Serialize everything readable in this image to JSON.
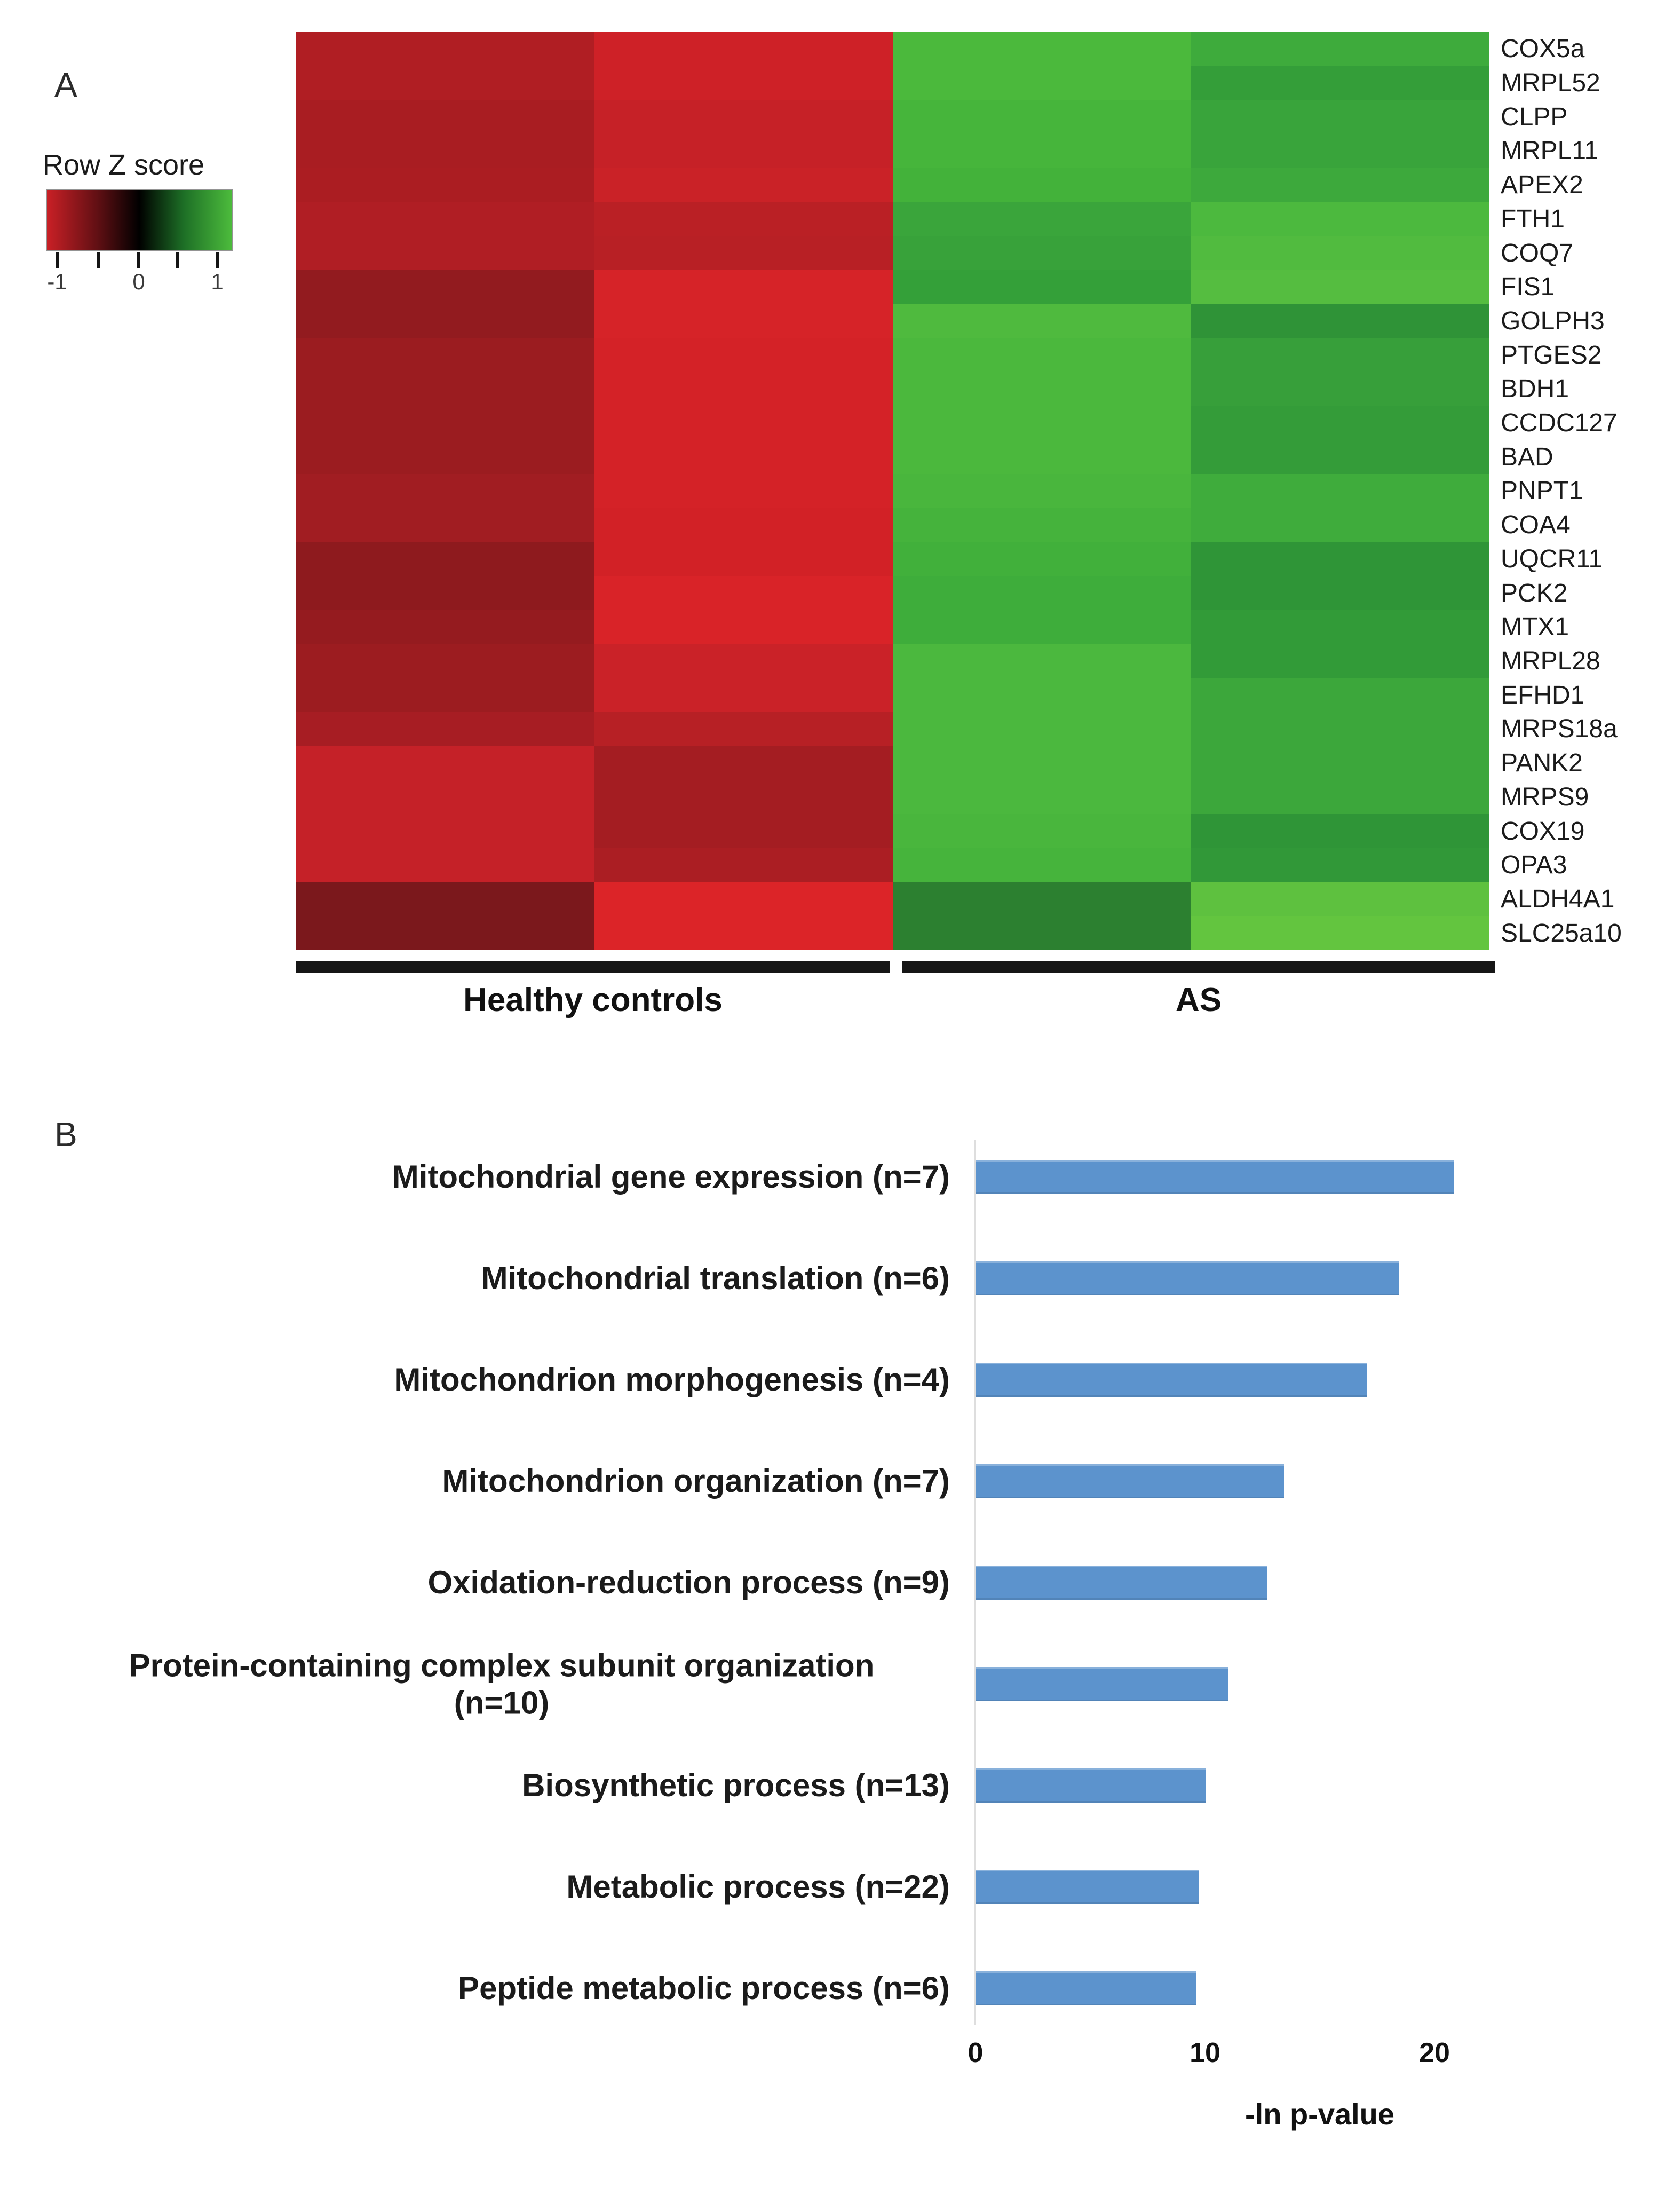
{
  "panelA": {
    "label": "A",
    "legend": {
      "title": "Row Z score",
      "tick_labels": [
        "-1",
        "0",
        "1"
      ]
    },
    "group_labels": [
      "Healthy controls",
      "AS"
    ]
  },
  "panelB": {
    "label": "B",
    "display_labels": [
      "Mitochondrial gene expression (n=7)",
      "Mitochondrial translation (n=6)",
      "Mitochondrion morphogenesis (n=4)",
      "Mitochondrion organization (n=7)",
      "Oxidation-reduction process (n=9)",
      "Protein-containing complex subunit organization\n(n=10)",
      "Biosynthetic process (n=13)",
      "Metabolic process (n=22)",
      "Peptide metabolic process (n=6)"
    ],
    "x_tick_labels": [
      "0",
      "10",
      "20"
    ],
    "x_axis_title": "-ln p-value"
  },
  "chart_data": [
    {
      "type": "heatmap",
      "legend_title": "Row Z score",
      "zlim": [
        -1,
        1
      ],
      "colorscale": [
        "#C92026",
        "#000000",
        "#4CBB3C"
      ],
      "column_groups": [
        {
          "label": "Healthy controls",
          "columns": 2
        },
        {
          "label": "AS",
          "columns": 2
        }
      ],
      "rows": [
        "COX5a",
        "MRPL52",
        "CLPP",
        "MRPL11",
        "APEX2",
        "FTH1",
        "COQ7",
        "FIS1",
        "GOLPH3",
        "PTGES2",
        "BDH1",
        "CCDC127",
        "BAD",
        "PNPT1",
        "COA4",
        "UQCR11",
        "PCK2",
        "MTX1",
        "MRPL28",
        "EFHD1",
        "MRPS18a",
        "PANK2",
        "MRPS9",
        "COX19",
        "OPA3",
        "ALDH4A1",
        "SLC25a10"
      ],
      "cell_colors": [
        [
          "#B01E23",
          "#CE2127",
          "#4BB93C",
          "#3EAB3C"
        ],
        [
          "#B01E23",
          "#CE2127",
          "#4BB93C",
          "#349E39"
        ],
        [
          "#A91D22",
          "#C62127",
          "#46B53B",
          "#39A43B"
        ],
        [
          "#A91D22",
          "#C62127",
          "#46B53B",
          "#39A43B"
        ],
        [
          "#AB1D22",
          "#CA2227",
          "#43B23A",
          "#3DA93C"
        ],
        [
          "#B01E24",
          "#BA2025",
          "#3AA53B",
          "#4CB93E"
        ],
        [
          "#B01E24",
          "#B82025",
          "#38A23A",
          "#51BB3F"
        ],
        [
          "#921B1F",
          "#D62328",
          "#34A039",
          "#55BD40"
        ],
        [
          "#921B1F",
          "#D62328",
          "#4FBA3E",
          "#2F9337"
        ],
        [
          "#9B1C20",
          "#D42227",
          "#4BB83D",
          "#379F3A"
        ],
        [
          "#9B1C20",
          "#D42227",
          "#4BB83D",
          "#379F3A"
        ],
        [
          "#9B1C20",
          "#D42227",
          "#4BB83D",
          "#349C39"
        ],
        [
          "#9B1C20",
          "#D42227",
          "#4BB83D",
          "#349C39"
        ],
        [
          "#A11D22",
          "#D42227",
          "#49B63D",
          "#3FAC3C"
        ],
        [
          "#A11D22",
          "#D22126",
          "#45B33C",
          "#3FAC3C"
        ],
        [
          "#8E1A1E",
          "#D22126",
          "#41B03B",
          "#2F9537"
        ],
        [
          "#8E1A1E",
          "#D92328",
          "#3EAD3B",
          "#2F9537"
        ],
        [
          "#951B1F",
          "#D92328",
          "#3EAD3B",
          "#329B38"
        ],
        [
          "#9C1C20",
          "#CA2228",
          "#4BB83E",
          "#329B38"
        ],
        [
          "#9C1C20",
          "#CA2228",
          "#4BB83E",
          "#3CA73B"
        ],
        [
          "#A71D23",
          "#B72025",
          "#4BB83E",
          "#3CA73B"
        ],
        [
          "#C52128",
          "#A41D22",
          "#4BB83E",
          "#3CA73B"
        ],
        [
          "#C52128",
          "#A41D22",
          "#4BB83E",
          "#3CA73B"
        ],
        [
          "#C52128",
          "#A41D22",
          "#49B63D",
          "#2F9537"
        ],
        [
          "#C52128",
          "#AB1E23",
          "#46B43C",
          "#319838"
        ],
        [
          "#7B181C",
          "#DC2428",
          "#2C8030",
          "#5EC13F"
        ],
        [
          "#7B181C",
          "#DC2428",
          "#2C8030",
          "#63C53F"
        ]
      ]
    },
    {
      "type": "bar",
      "orientation": "horizontal",
      "categories": [
        "Mitochondrial gene expression (n=7)",
        "Mitochondrial translation (n=6)",
        "Mitochondrion morphogenesis (n=4)",
        "Mitochondrion organization (n=7)",
        "Oxidation-reduction process (n=9)",
        "Protein-containing complex subunit organization (n=10)",
        "Biosynthetic process (n=13)",
        "Metabolic process (n=22)",
        "Peptide metabolic process (n=6)"
      ],
      "values": [
        20.8,
        18.4,
        17.0,
        13.4,
        12.7,
        11.0,
        10.0,
        9.7,
        9.6
      ],
      "xlabel": "-ln p-value",
      "xlim": [
        0,
        22
      ],
      "xticks": [
        0,
        10,
        20
      ],
      "bar_color": "#5C93CD",
      "grid": false,
      "legend": "none"
    }
  ]
}
